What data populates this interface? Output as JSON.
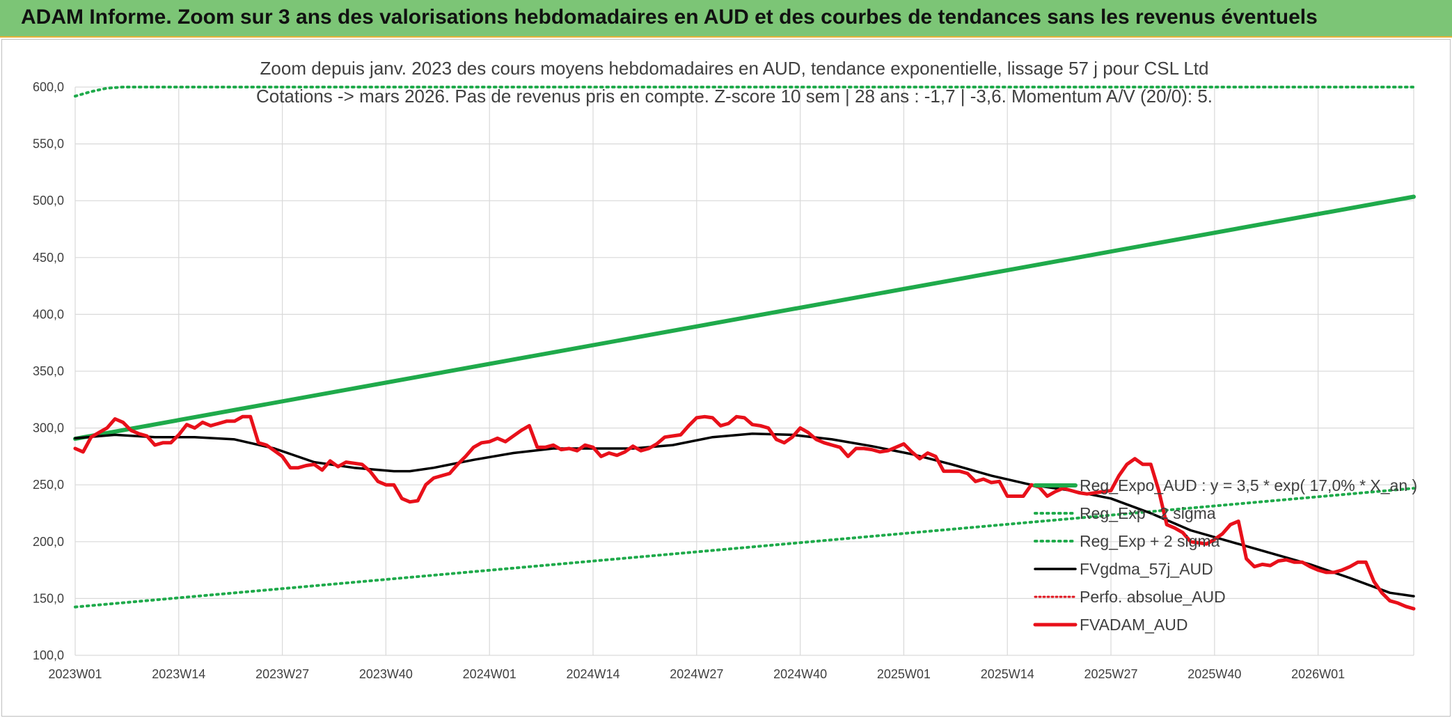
{
  "banner": {
    "title": "ADAM Informe. Zoom sur 3 ans des valorisations hebdomadaires en AUD et des courbes de tendances sans les revenus éventuels"
  },
  "chart_data": {
    "type": "line",
    "title": "Zoom depuis janv. 2023 des cours moyens hebdomadaires en AUD, tendance exponentielle, lissage 57 j pour CSL Ltd",
    "subtitle": "Cotations -> mars 2026. Pas de revenus pris en compte. Z-score 10 sem | 28 ans : -1,7 | -3,6. Momentum A/V (20/0): 5.",
    "xlabel": "",
    "ylabel": "",
    "ylim": [
      100,
      600
    ],
    "y_ticks": [
      "100,0",
      "150,0",
      "200,0",
      "250,0",
      "300,0",
      "350,0",
      "400,0",
      "450,0",
      "500,0",
      "550,0",
      "600,0"
    ],
    "x_tick_labels": [
      "2023W01",
      "2023W14",
      "2023W27",
      "2023W40",
      "2024W01",
      "2024W14",
      "2024W27",
      "2024W40",
      "2025W01",
      "2025W14",
      "2025W27",
      "2025W40",
      "2026W01"
    ],
    "x_range": [
      0,
      168
    ],
    "grid": true,
    "legend_position": "right",
    "colors": {
      "reg_expo": "#1faa4b",
      "sigma": "#1faa4b",
      "fvgdma": "#000000",
      "perfo": "#e0141e",
      "fvadam": "#e8101a",
      "grid": "#d9d9d9"
    },
    "series": [
      {
        "name": "Reg_Expo_AUD : y = 3,5 * exp( 17,0% * X_an )",
        "style": "solid-thick",
        "x": [
          0,
          168
        ],
        "y": [
          290.5,
          503.5
        ]
      },
      {
        "name": "Reg_Exp - 2 sigma",
        "style": "dotted",
        "x": [
          0,
          168
        ],
        "y": [
          142.5,
          247
        ]
      },
      {
        "name": "Reg_Exp + 2 sigma",
        "style": "dotted",
        "x": [
          0,
          2,
          4,
          6,
          10,
          15,
          22,
          168
        ],
        "y": [
          592,
          596,
          599,
          600,
          600,
          600,
          600,
          600
        ]
      },
      {
        "name": "FVgdma_57j_AUD",
        "style": "solid",
        "x": [
          0,
          5,
          10,
          15,
          20,
          25,
          30,
          35,
          40,
          42,
          45,
          50,
          55,
          60,
          65,
          70,
          75,
          80,
          85,
          90,
          95,
          100,
          105,
          110,
          115,
          120,
          125,
          130,
          135,
          140,
          145,
          150,
          155,
          160,
          165,
          168
        ],
        "y": [
          291,
          294,
          292,
          292,
          290,
          282,
          270,
          265,
          262,
          262,
          265,
          272,
          278,
          282,
          282,
          282,
          285,
          292,
          295,
          294,
          290,
          284,
          277,
          268,
          258,
          250,
          245,
          238,
          225,
          210,
          200,
          190,
          180,
          168,
          155,
          152
        ]
      },
      {
        "name": "Perfo. absolue_AUD",
        "style": "dotted-red",
        "x": [],
        "y": []
      },
      {
        "name": "FVADAM_AUD",
        "style": "solid-thick",
        "x": [
          0,
          1,
          2,
          3,
          4,
          5,
          6,
          7,
          8,
          9,
          10,
          11,
          12,
          13,
          14,
          15,
          16,
          17,
          18,
          19,
          20,
          21,
          22,
          23,
          24,
          25,
          26,
          27,
          28,
          29,
          30,
          31,
          32,
          33,
          34,
          35,
          36,
          37,
          38,
          39,
          40,
          41,
          42,
          43,
          44,
          45,
          46,
          47,
          48,
          49,
          50,
          51,
          52,
          53,
          54,
          55,
          56,
          57,
          58,
          59,
          60,
          61,
          62,
          63,
          64,
          65,
          66,
          67,
          68,
          69,
          70,
          71,
          72,
          73,
          74,
          75,
          76,
          77,
          78,
          79,
          80,
          81,
          82,
          83,
          84,
          85,
          86,
          87,
          88,
          89,
          90,
          91,
          92,
          93,
          94,
          95,
          96,
          97,
          98,
          99,
          100,
          101,
          102,
          103,
          104,
          105,
          106,
          107,
          108,
          109,
          110,
          111,
          112,
          113,
          114,
          115,
          116,
          117,
          118,
          119,
          120,
          121,
          122,
          123,
          124,
          125,
          126,
          127,
          128,
          129,
          130,
          131,
          132,
          133,
          134,
          135,
          136,
          137,
          138,
          139,
          140,
          141,
          142,
          143,
          144,
          145,
          146,
          147,
          148,
          149,
          150,
          151,
          152,
          153,
          154,
          155,
          156,
          157,
          158,
          159,
          160,
          161,
          162,
          163,
          164,
          165,
          166,
          167,
          168
        ],
        "y": [
          282,
          279,
          292,
          296,
          300,
          308,
          305,
          298,
          295,
          293,
          285,
          287,
          287,
          294,
          303,
          300,
          305,
          302,
          304,
          306,
          306,
          310,
          310,
          287,
          285,
          280,
          275,
          265,
          265,
          267,
          268,
          263,
          271,
          266,
          270,
          269,
          268,
          262,
          253,
          250,
          250,
          238,
          235,
          236,
          250,
          256,
          258,
          260,
          268,
          275,
          283,
          287,
          288,
          291,
          288,
          293,
          298,
          302,
          283,
          283,
          285,
          281,
          282,
          280,
          285,
          283,
          275,
          278,
          276,
          279,
          284,
          280,
          282,
          286,
          292,
          293,
          294,
          302,
          309,
          310,
          309,
          302,
          304,
          310,
          309,
          303,
          302,
          300,
          290,
          287,
          292,
          300,
          296,
          290,
          287,
          285,
          283,
          275,
          282,
          282,
          281,
          279,
          280,
          283,
          286,
          279,
          273,
          278,
          275,
          262,
          262,
          262,
          260,
          253,
          255,
          252,
          253,
          240,
          240,
          240,
          250,
          248,
          240,
          244,
          247,
          245,
          243,
          242,
          243,
          244,
          245,
          258,
          268,
          273,
          268,
          268,
          245,
          215,
          212,
          208,
          200,
          199,
          198,
          202,
          207,
          215,
          218,
          185,
          178,
          180,
          179,
          183,
          184,
          182,
          182,
          178,
          175,
          173,
          173,
          175,
          178,
          182,
          182,
          165,
          155,
          148,
          146,
          143,
          141
        ]
      }
    ]
  }
}
